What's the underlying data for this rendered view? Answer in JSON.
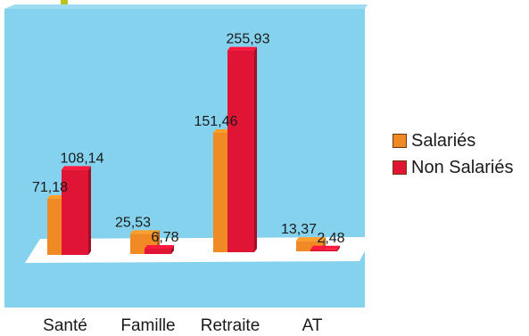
{
  "colors": {
    "plot_background": "#84d2ee",
    "floor": "#ffffff",
    "salaries": "#f08a24",
    "non_salaries": "#e01535",
    "accent": "#b9c21f"
  },
  "legend": {
    "salaries_label": "Salariés",
    "non_salaries_label": "Non Salariés"
  },
  "chart_data": {
    "type": "bar",
    "style": "3d-clustered",
    "categories": [
      "Santé",
      "Famille",
      "Retraite",
      "AT"
    ],
    "series": [
      {
        "name": "Salariés",
        "values": [
          71.18,
          25.53,
          151.46,
          13.37
        ],
        "labels": [
          "71,18",
          "25,53",
          "151,46",
          "13,37"
        ]
      },
      {
        "name": "Non Salariés",
        "values": [
          108.14,
          6.78,
          255.93,
          2.48
        ],
        "labels": [
          "108,14",
          "6,78",
          "255,93",
          "2,48"
        ]
      }
    ],
    "title": "",
    "xlabel": "",
    "ylabel": "",
    "ylim": [
      0,
      260
    ],
    "grid": false,
    "legend_position": "right"
  }
}
